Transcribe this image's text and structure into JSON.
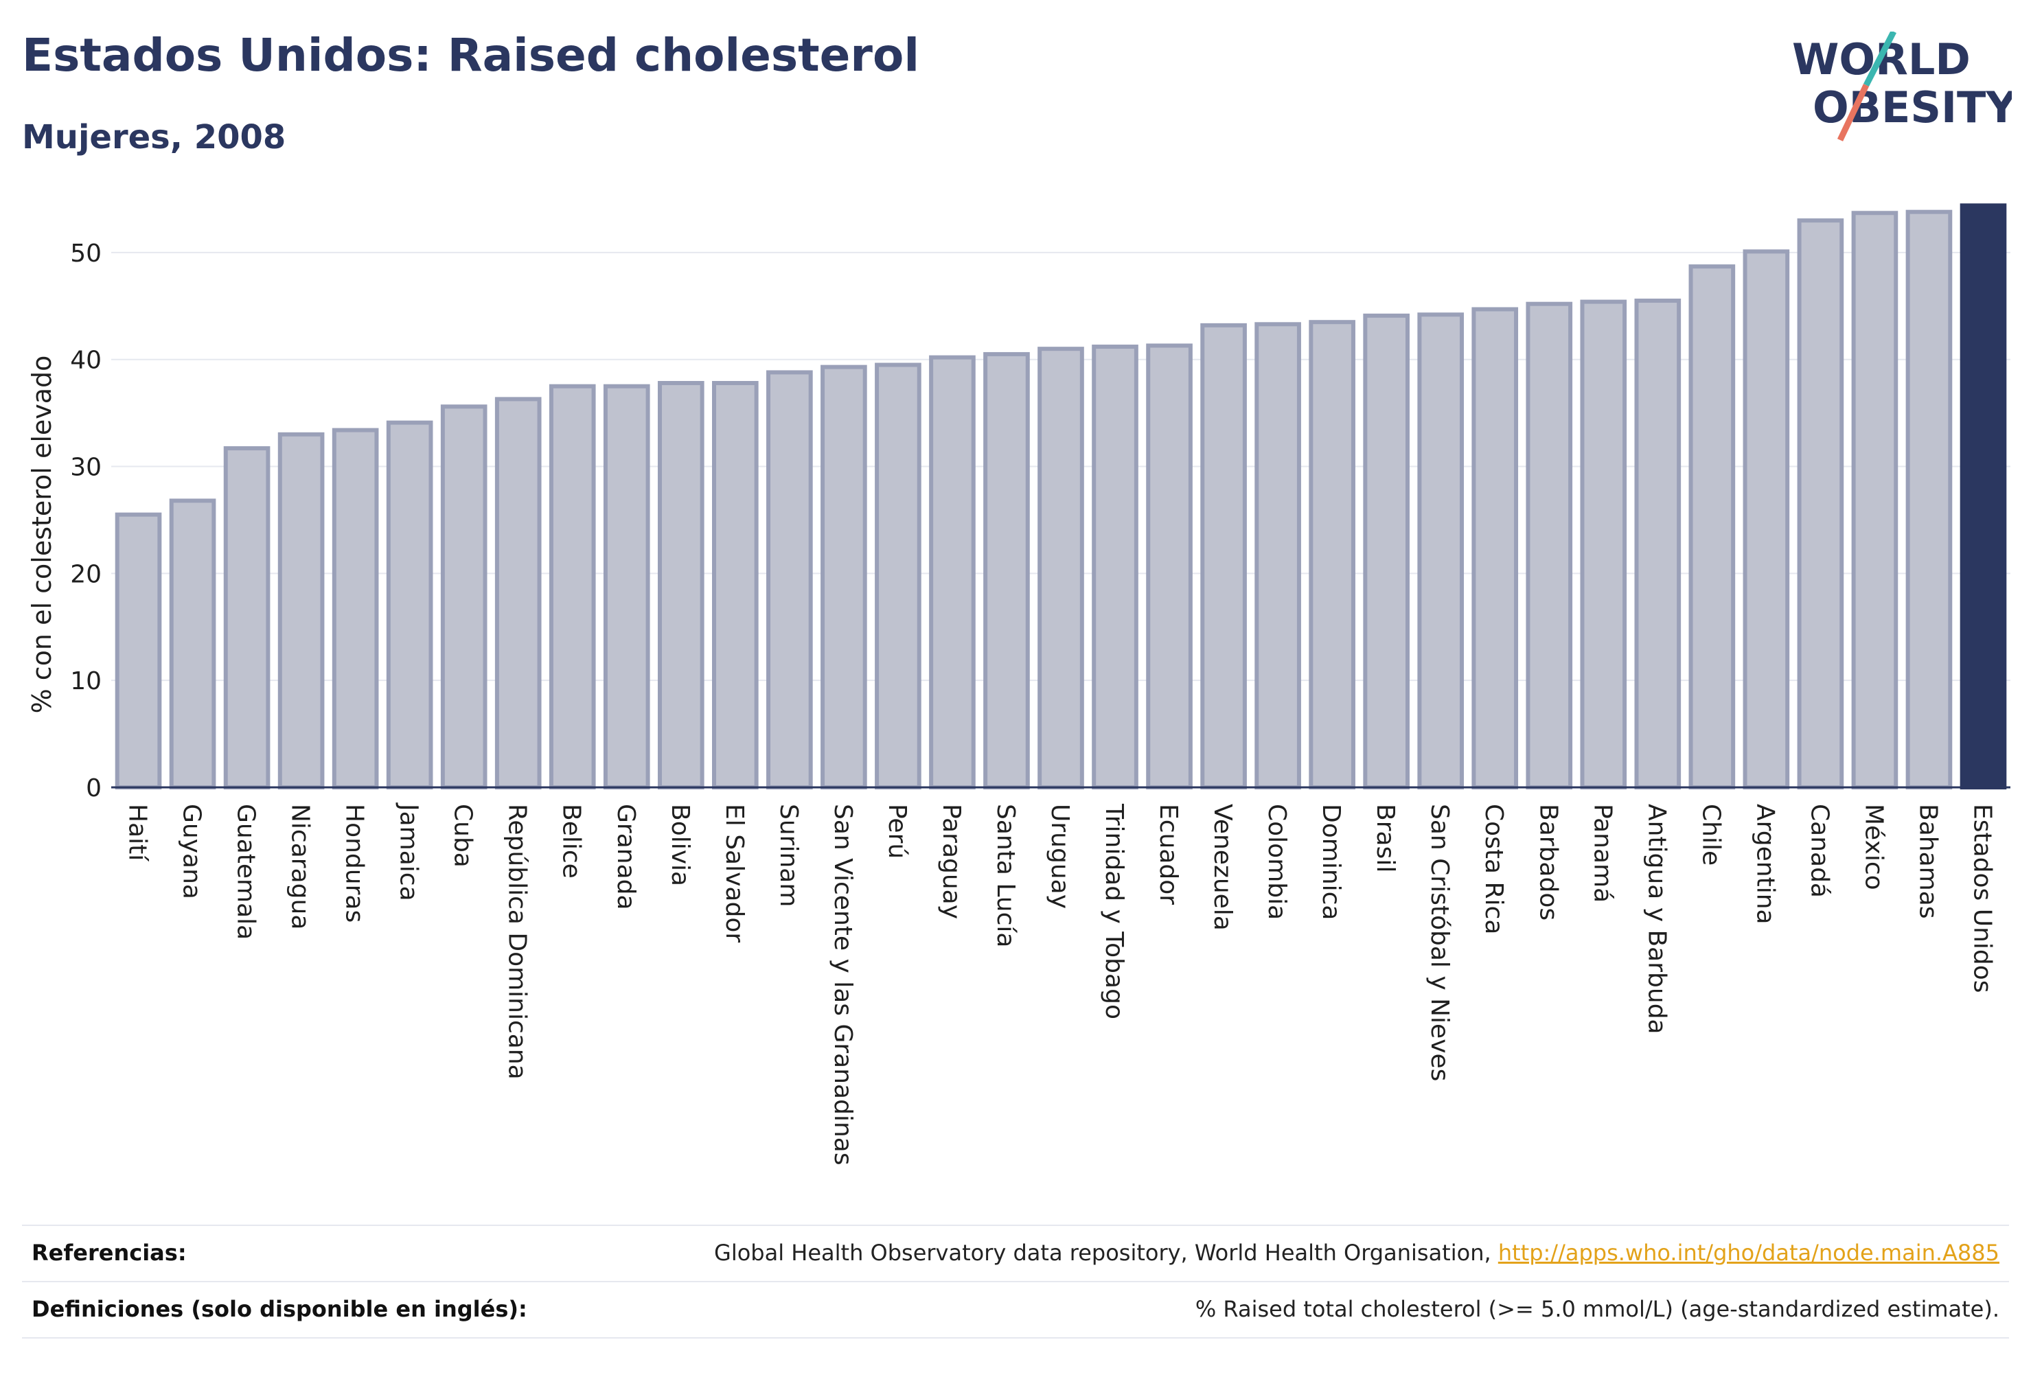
{
  "header": {
    "title": "Estados Unidos: Raised cholesterol",
    "subtitle": "Mujeres, 2008"
  },
  "logo": {
    "line1": "WORLD",
    "line2": "OBESITY"
  },
  "colors": {
    "bar_fill": "#bfc2cf",
    "bar_stroke": "#9aa0b8",
    "highlight": "#2b3760",
    "title": "#2b3760",
    "link": "#e3a21a",
    "logo_slash_teal": "#3bb6b0",
    "logo_slash_coral": "#e8745f"
  },
  "chart_data": {
    "type": "bar",
    "title": "",
    "xlabel": "",
    "ylabel": "% con el colesterol elevado",
    "ylim": [
      0,
      55
    ],
    "yticks": [
      0,
      10,
      20,
      30,
      40,
      50
    ],
    "grid": true,
    "highlight_category": "Estados Unidos",
    "categories": [
      "Haití",
      "Guyana",
      "Guatemala",
      "Nicaragua",
      "Honduras",
      "Jamaica",
      "Cuba",
      "República Dominicana",
      "Belice",
      "Granada",
      "Bolivia",
      "El Salvador",
      "Surinam",
      "San Vicente y las Granadinas",
      "Perú",
      "Paraguay",
      "Santa Lucía",
      "Uruguay",
      "Trinidad y Tobago",
      "Ecuador",
      "Venezuela",
      "Colombia",
      "Dominica",
      "Brasil",
      "San Cristóbal y Nieves",
      "Costa Rica",
      "Barbados",
      "Panamá",
      "Antigua y Barbuda",
      "Chile",
      "Argentina",
      "Canadá",
      "México",
      "Bahamas",
      "Estados Unidos"
    ],
    "values": [
      25.5,
      26.8,
      31.7,
      33.0,
      33.4,
      34.1,
      35.6,
      36.3,
      37.5,
      37.5,
      37.8,
      37.8,
      38.8,
      39.3,
      39.5,
      40.2,
      40.5,
      41.0,
      41.2,
      41.3,
      43.2,
      43.3,
      43.5,
      44.1,
      44.2,
      44.7,
      45.2,
      45.4,
      45.5,
      48.7,
      50.1,
      53.0,
      53.7,
      53.8,
      54.4
    ]
  },
  "footer": {
    "references_label": "Referencias:",
    "references_text": "Global Health Observatory data repository, World Health Organisation, ",
    "references_link": "http://apps.who.int/gho/data/node.main.A885",
    "definitions_label": "Definiciones (solo disponible en inglés):",
    "definitions_text": "% Raised total cholesterol (>= 5.0 mmol/L) (age-standardized estimate)."
  }
}
